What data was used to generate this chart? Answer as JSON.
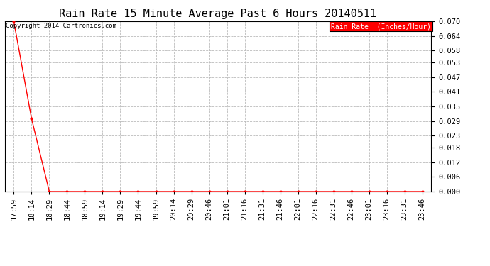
{
  "title": "Rain Rate 15 Minute Average Past 6 Hours 20140511",
  "copyright_text": "Copyright 2014 Cartronics.com",
  "legend_label": "Rain Rate  (Inches/Hour)",
  "x_labels": [
    "17:59",
    "18:14",
    "18:29",
    "18:44",
    "18:59",
    "19:14",
    "19:29",
    "19:44",
    "19:59",
    "20:14",
    "20:29",
    "20:46",
    "21:01",
    "21:16",
    "21:31",
    "21:46",
    "22:01",
    "22:16",
    "22:31",
    "22:46",
    "23:01",
    "23:16",
    "23:31",
    "23:46"
  ],
  "y_values": [
    0.07,
    0.03,
    0.0,
    0.0,
    0.0,
    0.0,
    0.0,
    0.0,
    0.0,
    0.0,
    0.0,
    0.0,
    0.0,
    0.0,
    0.0,
    0.0,
    0.0,
    0.0,
    0.0,
    0.0,
    0.0,
    0.0,
    0.0,
    0.0
  ],
  "ylim": [
    0.0,
    0.07
  ],
  "yticks": [
    0.0,
    0.006,
    0.012,
    0.018,
    0.023,
    0.029,
    0.035,
    0.041,
    0.047,
    0.053,
    0.058,
    0.064,
    0.07
  ],
  "line_color": "#ff0000",
  "marker": ".",
  "marker_size": 4,
  "background_color": "#ffffff",
  "grid_color": "#bbbbbb",
  "title_fontsize": 11,
  "tick_fontsize": 7.5,
  "copyright_fontsize": 6.5,
  "legend_fontsize": 7,
  "legend_bg_color": "#ff0000",
  "legend_text_color": "#ffffff"
}
